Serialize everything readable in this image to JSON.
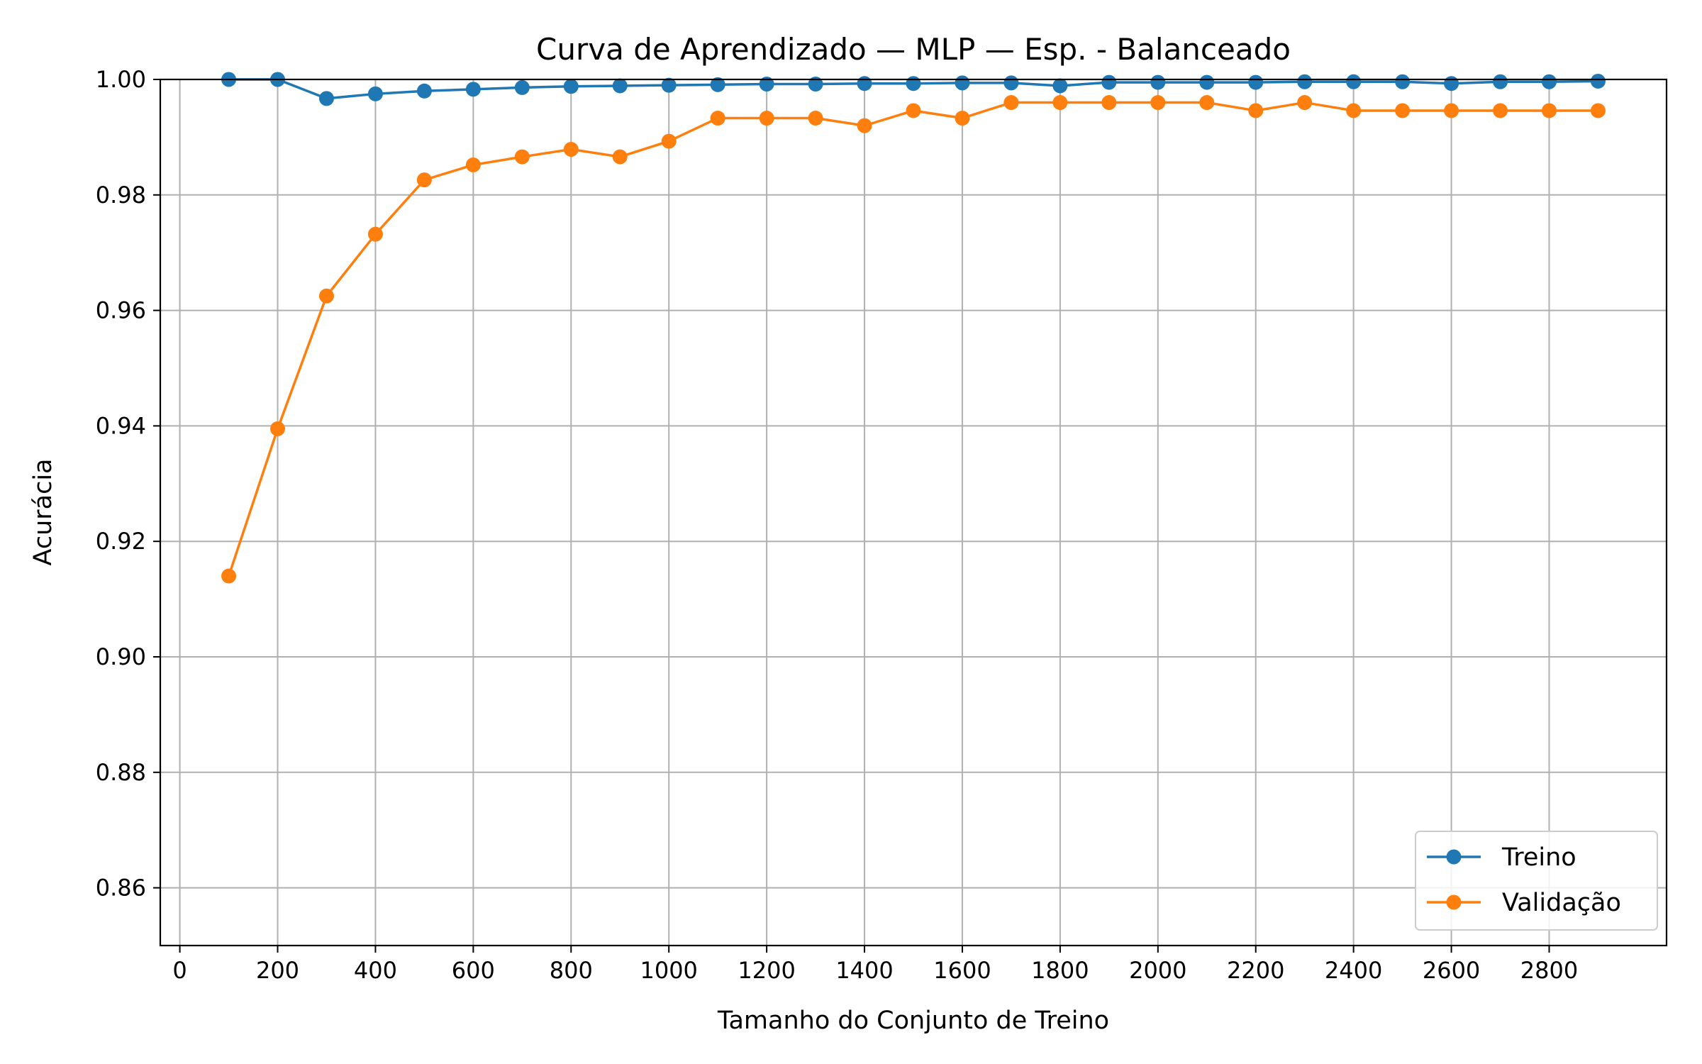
{
  "chart_data": {
    "type": "line",
    "title": "Curva de Aprendizado — MLP — Esp. - Balanceado",
    "xlabel": "Tamanho do Conjunto de Treino",
    "ylabel": "Acurácia",
    "xlim": [
      -40,
      3040
    ],
    "ylim": [
      0.85,
      1.0
    ],
    "xticks": [
      0,
      200,
      400,
      600,
      800,
      1000,
      1200,
      1400,
      1600,
      1800,
      2000,
      2200,
      2400,
      2600,
      2800
    ],
    "yticks": [
      0.86,
      0.88,
      0.9,
      0.92,
      0.94,
      0.96,
      0.98,
      1.0
    ],
    "ytick_labels": [
      "0.86",
      "0.88",
      "0.90",
      "0.92",
      "0.94",
      "0.96",
      "0.98",
      "1.00"
    ],
    "grid": true,
    "legend_position": "lower-right",
    "x": [
      100,
      200,
      300,
      400,
      500,
      600,
      700,
      800,
      900,
      1000,
      1100,
      1200,
      1300,
      1400,
      1500,
      1600,
      1700,
      1800,
      1900,
      2000,
      2100,
      2200,
      2300,
      2400,
      2500,
      2600,
      2700,
      2800,
      2900
    ],
    "series": [
      {
        "name": "Treino",
        "color": "#1f77b4",
        "values": [
          1.0,
          1.0,
          0.9967,
          0.9975,
          0.998,
          0.9983,
          0.9986,
          0.9988,
          0.9989,
          0.999,
          0.9991,
          0.9992,
          0.9992,
          0.9993,
          0.9993,
          0.9994,
          0.9994,
          0.9989,
          0.9995,
          0.9995,
          0.9995,
          0.9995,
          0.9996,
          0.9996,
          0.9996,
          0.9993,
          0.9996,
          0.9996,
          0.9997
        ]
      },
      {
        "name": "Validação",
        "color": "#ff7f0e",
        "values": [
          0.914,
          0.9395,
          0.9625,
          0.9732,
          0.9826,
          0.9852,
          0.9866,
          0.9879,
          0.9866,
          0.9893,
          0.9933,
          0.9933,
          0.9933,
          0.992,
          0.9946,
          0.9933,
          0.996,
          0.996,
          0.996,
          0.996,
          0.996,
          0.9946,
          0.996,
          0.9946,
          0.9946,
          0.9946,
          0.9946,
          0.9946,
          0.9946
        ]
      }
    ]
  }
}
